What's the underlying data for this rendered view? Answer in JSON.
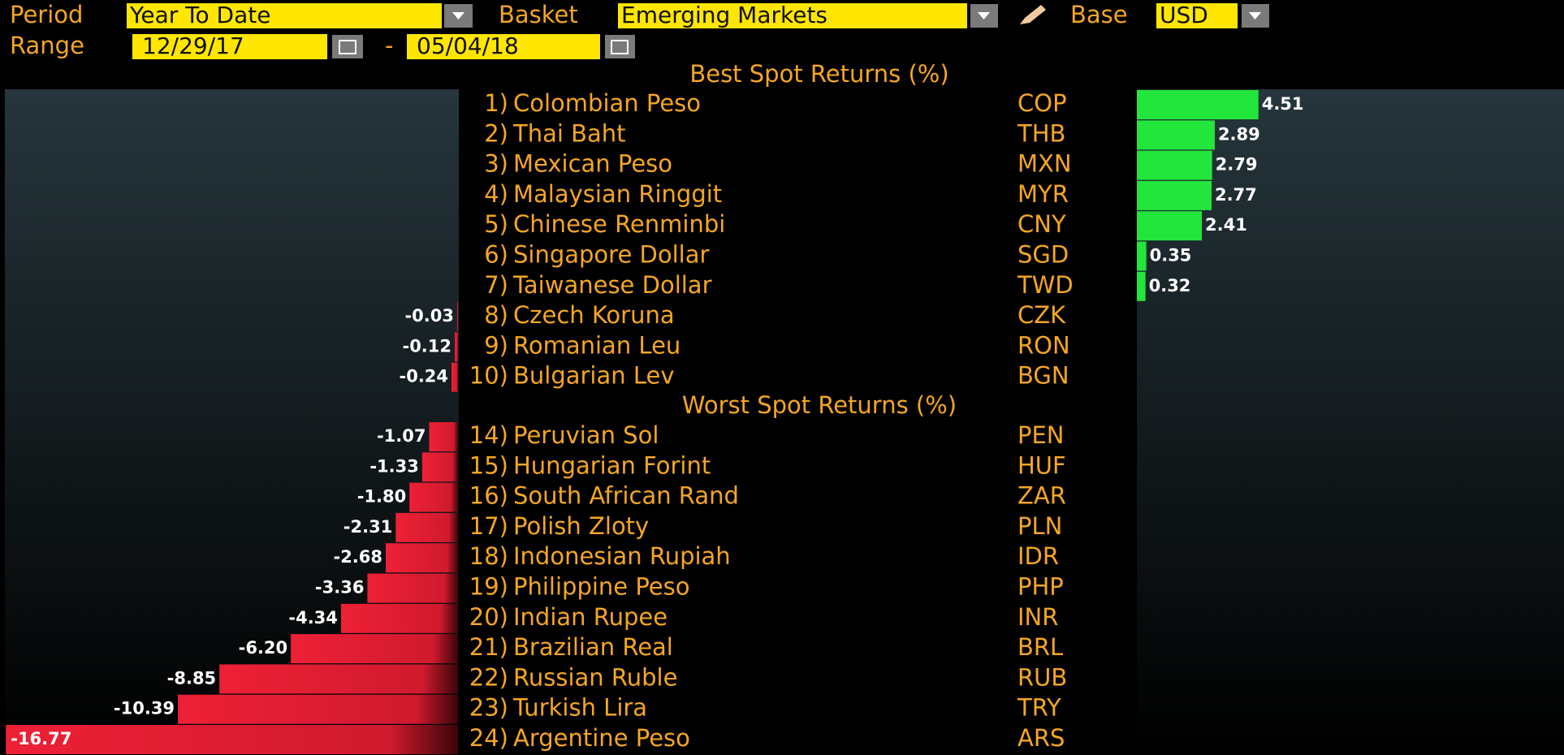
{
  "header": {
    "period_label": "Period",
    "period": "Year To Date",
    "basket_label": "Basket",
    "basket": "Emerging Markets",
    "base_label": "Base",
    "base": "USD",
    "range_label": "Range",
    "range_start": "12/29/17",
    "range_separator": "-",
    "range_end": "05/04/18"
  },
  "best": {
    "title": "Best Spot Returns (%)",
    "rows": [
      {
        "rank": "1)",
        "name": "Colombian Peso",
        "code": "COP",
        "value": 4.51
      },
      {
        "rank": "2)",
        "name": "Thai Baht",
        "code": "THB",
        "value": 2.89
      },
      {
        "rank": "3)",
        "name": "Mexican Peso",
        "code": "MXN",
        "value": 2.79
      },
      {
        "rank": "4)",
        "name": "Malaysian Ringgit",
        "code": "MYR",
        "value": 2.77
      },
      {
        "rank": "5)",
        "name": "Chinese Renminbi",
        "code": "CNY",
        "value": 2.41
      },
      {
        "rank": "6)",
        "name": "Singapore Dollar",
        "code": "SGD",
        "value": 0.35
      },
      {
        "rank": "7)",
        "name": "Taiwanese Dollar",
        "code": "TWD",
        "value": 0.32
      },
      {
        "rank": "8)",
        "name": "Czech Koruna",
        "code": "CZK",
        "value": -0.03
      },
      {
        "rank": "9)",
        "name": "Romanian Leu",
        "code": "RON",
        "value": -0.12
      },
      {
        "rank": "10)",
        "name": "Bulgarian Lev",
        "code": "BGN",
        "value": -0.24
      }
    ]
  },
  "worst": {
    "title": "Worst Spot Returns (%)",
    "rows": [
      {
        "rank": "14)",
        "name": "Peruvian Sol",
        "code": "PEN",
        "value": -1.07
      },
      {
        "rank": "15)",
        "name": "Hungarian Forint",
        "code": "HUF",
        "value": -1.33
      },
      {
        "rank": "16)",
        "name": "South African Rand",
        "code": "ZAR",
        "value": -1.8,
        "value_label": "-1.80"
      },
      {
        "rank": "17)",
        "name": "Polish Zloty",
        "code": "PLN",
        "value": -2.31
      },
      {
        "rank": "18)",
        "name": "Indonesian Rupiah",
        "code": "IDR",
        "value": -2.68
      },
      {
        "rank": "19)",
        "name": "Philippine Peso",
        "code": "PHP",
        "value": -3.36
      },
      {
        "rank": "20)",
        "name": "Indian Rupee",
        "code": "INR",
        "value": -4.34
      },
      {
        "rank": "21)",
        "name": "Brazilian Real",
        "code": "BRL",
        "value": -6.2,
        "value_label": "-6.20"
      },
      {
        "rank": "22)",
        "name": "Russian Ruble",
        "code": "RUB",
        "value": -8.85
      },
      {
        "rank": "23)",
        "name": "Turkish Lira",
        "code": "TRY",
        "value": -10.39
      },
      {
        "rank": "24)",
        "name": "Argentine Peso",
        "code": "ARS",
        "value": -16.77
      }
    ]
  }
}
